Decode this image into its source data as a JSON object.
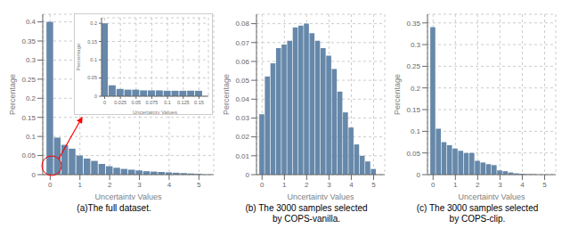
{
  "chart_data": [
    {
      "type": "bar",
      "title": "(a)The full dataset.",
      "xlabel": "Uncertainty Values",
      "ylabel": "Percentage",
      "x": [
        0.0,
        0.25,
        0.5,
        0.75,
        1.0,
        1.25,
        1.5,
        1.75,
        2.0,
        2.25,
        2.5,
        2.75,
        3.0,
        3.25,
        3.5,
        3.75,
        4.0,
        4.25,
        4.5,
        4.75,
        5.0
      ],
      "values": [
        0.4,
        0.097,
        0.078,
        0.068,
        0.05,
        0.042,
        0.036,
        0.028,
        0.022,
        0.018,
        0.015,
        0.013,
        0.011,
        0.009,
        0.008,
        0.007,
        0.006,
        0.005,
        0.004,
        0.003,
        0.002
      ],
      "color": "#6688aa",
      "xlim": [
        -0.25,
        5.5
      ],
      "ylim": [
        0,
        0.42
      ],
      "xticks": [
        0,
        1,
        2,
        3,
        4,
        5
      ],
      "yticks": [
        0.0,
        0.05,
        0.1,
        0.15,
        0.2,
        0.25,
        0.3,
        0.35,
        0.4
      ],
      "grid": true
    },
    {
      "type": "bar",
      "xlabel": "Uncertainty Values",
      "ylabel": "Percentage",
      "x": [
        0.0,
        0.0125,
        0.025,
        0.0375,
        0.05,
        0.0625,
        0.075,
        0.0875,
        0.1,
        0.1125,
        0.125,
        0.1375,
        0.15
      ],
      "values": [
        0.2,
        0.03,
        0.02,
        0.018,
        0.018,
        0.016,
        0.016,
        0.016,
        0.015,
        0.015,
        0.015,
        0.015,
        0.015
      ],
      "color": "#6688aa",
      "xlim": [
        -0.005,
        0.165
      ],
      "ylim": [
        0,
        0.215
      ],
      "xticks": [
        0.0,
        0.025,
        0.05,
        0.075,
        0.1,
        0.125,
        0.15
      ],
      "yticks": [
        0,
        0.05,
        0.1,
        0.15,
        0.2
      ],
      "grid": true
    },
    {
      "type": "bar",
      "title": "(b) The 3000 samples selected\nby COPS-vanilla.",
      "xlabel": "Uncertainty Values",
      "ylabel": "Percentage",
      "x": [
        0.0,
        0.25,
        0.5,
        0.75,
        1.0,
        1.25,
        1.5,
        1.75,
        2.0,
        2.25,
        2.5,
        2.75,
        3.0,
        3.25,
        3.5,
        3.75,
        4.0,
        4.25,
        4.5,
        4.75,
        5.0
      ],
      "values": [
        0.032,
        0.052,
        0.059,
        0.067,
        0.069,
        0.071,
        0.078,
        0.079,
        0.08,
        0.075,
        0.071,
        0.067,
        0.063,
        0.056,
        0.044,
        0.033,
        0.025,
        0.016,
        0.01,
        0.007,
        0.003
      ],
      "color": "#6688aa",
      "xlim": [
        -0.25,
        5.5
      ],
      "ylim": [
        0,
        0.085
      ],
      "xticks": [
        0,
        1,
        2,
        3,
        4,
        5
      ],
      "yticks": [
        0.0,
        0.01,
        0.02,
        0.03,
        0.04,
        0.05,
        0.06,
        0.07,
        0.08
      ],
      "grid": true
    },
    {
      "type": "bar",
      "title": "(c) The 3000 samples selected\nby COPS-clip.",
      "xlabel": "Uncertainty Values",
      "ylabel": "Percentage",
      "x": [
        0.0,
        0.25,
        0.5,
        0.75,
        1.0,
        1.25,
        1.5,
        1.75,
        2.0,
        2.25,
        2.5,
        2.75,
        3.0,
        3.25,
        3.5,
        3.75,
        4.0,
        4.25,
        4.5,
        4.75,
        5.0
      ],
      "values": [
        0.34,
        0.106,
        0.075,
        0.068,
        0.06,
        0.055,
        0.05,
        0.05,
        0.032,
        0.028,
        0.024,
        0.022,
        0.01,
        0.008,
        0.005,
        0.003,
        0.002,
        0.001,
        0.001,
        0.0,
        0.0
      ],
      "color": "#6688aa",
      "xlim": [
        -0.25,
        5.5
      ],
      "ylim": [
        0,
        0.37
      ],
      "xticks": [
        0,
        1,
        2,
        3,
        4,
        5
      ],
      "yticks": [
        0.0,
        0.05,
        0.1,
        0.15,
        0.2,
        0.25,
        0.3,
        0.35
      ],
      "grid": true
    }
  ]
}
